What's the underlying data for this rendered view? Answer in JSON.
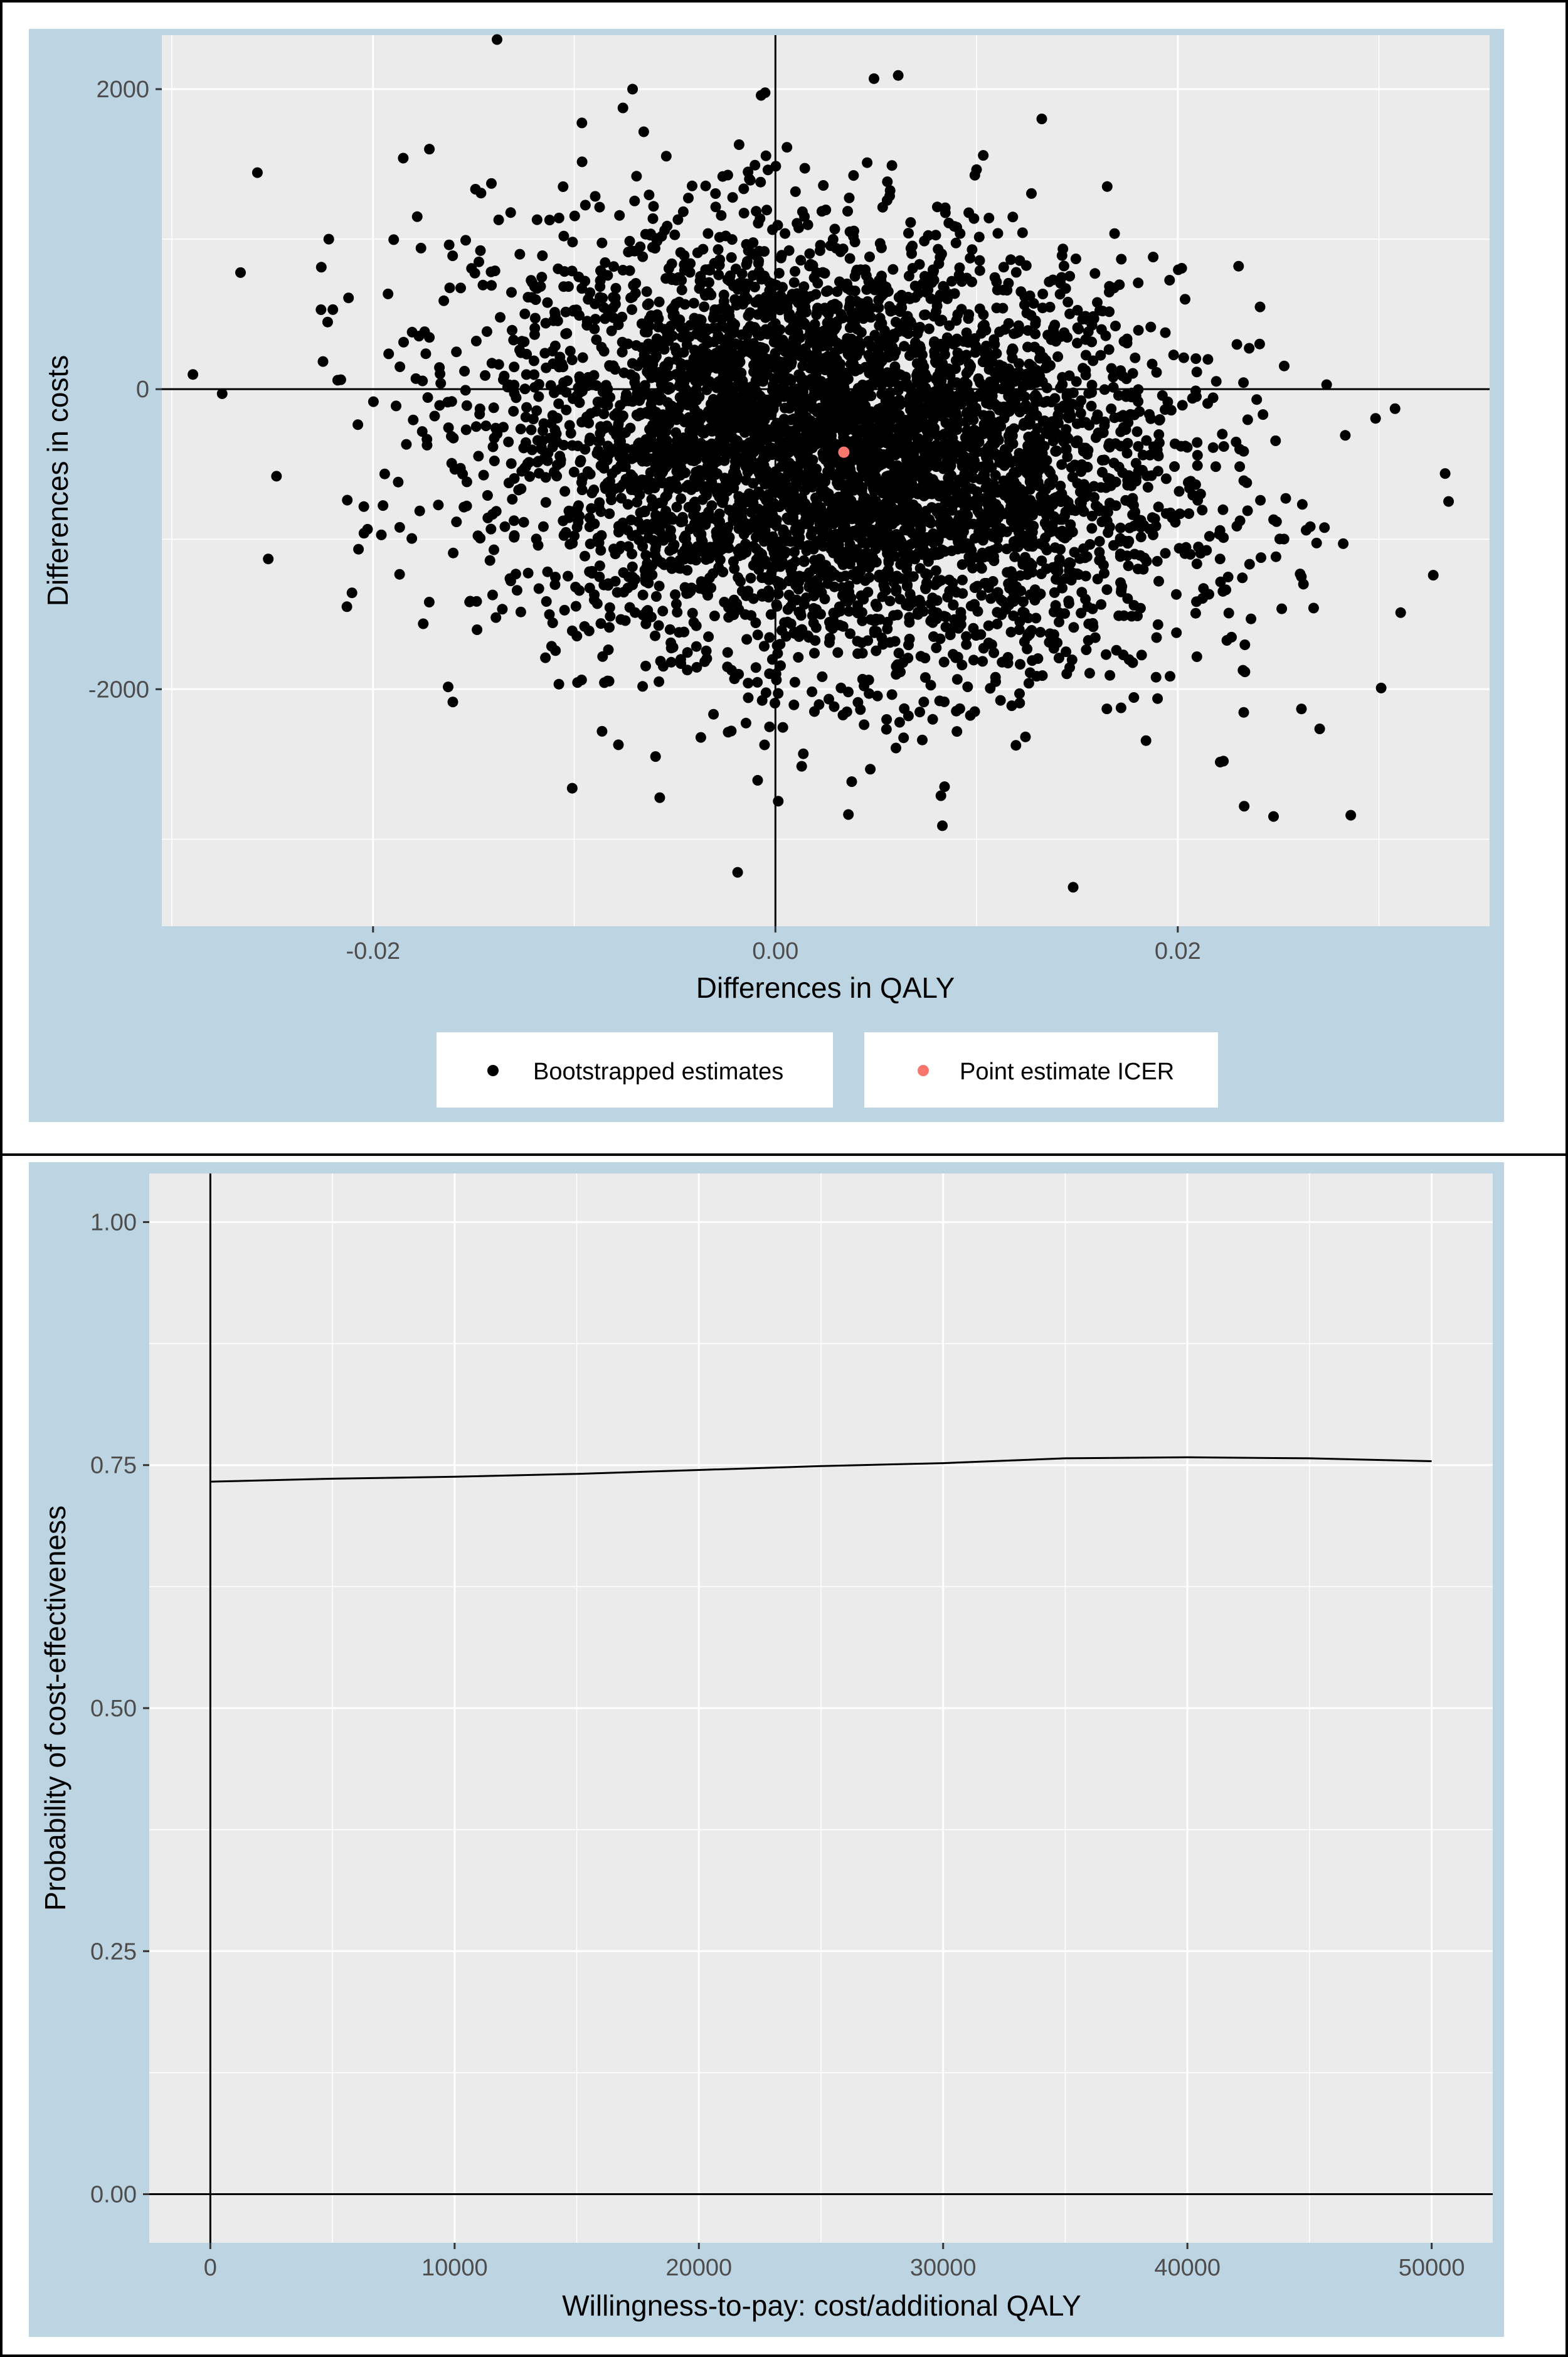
{
  "chart_data": [
    {
      "type": "scatter",
      "title": "",
      "xlabel": "Differences in QALY",
      "ylabel": "Differences in costs",
      "xlim": [
        -0.0305,
        0.0355
      ],
      "ylim": [
        -3580,
        2360
      ],
      "x_ticks": [
        -0.02,
        0.0,
        0.02
      ],
      "x_tick_labels": [
        "-0.02",
        "0.00",
        "0.02"
      ],
      "y_ticks": [
        -2000,
        0,
        2000
      ],
      "y_tick_labels": [
        "-2000",
        "0",
        "2000"
      ],
      "grid": true,
      "reference_lines": {
        "x": 0,
        "y": 0
      },
      "legend_position": "bottom",
      "series": [
        {
          "name": "Bootstrapped estimates",
          "color": "#000000",
          "n_points_shown": 5000,
          "distribution": {
            "mean_x": 0.003,
            "sd_x": 0.0085,
            "mean_y": -420,
            "sd_y": 720
          },
          "extreme_points": [
            [
              -0.0275,
              -30
            ],
            [
              -0.0248,
              -580
            ],
            [
              -0.0222,
              1000
            ],
            [
              -0.0213,
              -1450
            ],
            [
              -0.0185,
              1540
            ],
            [
              -0.0172,
              1600
            ],
            [
              -0.0101,
              -2660
            ],
            [
              -0.0071,
              2000
            ],
            [
              0.0049,
              2070
            ],
            [
              0.0083,
              -2910
            ],
            [
              0.0148,
              -3320
            ],
            [
              0.0233,
              -2780
            ],
            [
              0.0286,
              -2840
            ],
            [
              0.0308,
              -130
            ],
            [
              0.0327,
              -1240
            ],
            [
              0.0274,
              30
            ]
          ]
        },
        {
          "name": "Point estimate ICER",
          "color": "#f8766d",
          "points": [
            [
              0.0034,
              -420
            ]
          ]
        }
      ]
    },
    {
      "type": "line",
      "title": "",
      "xlabel": "Willingness-to-pay: cost/additional QALY",
      "ylabel": "Probability of cost-effectiveness",
      "xlim": [
        -2500,
        52500
      ],
      "ylim": [
        -0.05,
        1.05
      ],
      "x_ticks": [
        0,
        10000,
        20000,
        30000,
        40000,
        50000
      ],
      "x_tick_labels": [
        "0",
        "10000",
        "20000",
        "30000",
        "40000",
        "50000"
      ],
      "y_ticks": [
        0,
        0.25,
        0.5,
        0.75,
        1.0
      ],
      "y_tick_labels": [
        "0.00",
        "0.25",
        "0.50",
        "0.75",
        "1.00"
      ],
      "grid": true,
      "reference_lines": {
        "x": 0,
        "y": 0
      },
      "series": [
        {
          "color": "#000000",
          "x": [
            0,
            5000,
            10000,
            15000,
            20000,
            25000,
            30000,
            35000,
            40000,
            45000,
            50000
          ],
          "y": [
            0.733,
            0.736,
            0.738,
            0.741,
            0.745,
            0.749,
            0.752,
            0.757,
            0.758,
            0.757,
            0.754
          ]
        }
      ]
    }
  ]
}
